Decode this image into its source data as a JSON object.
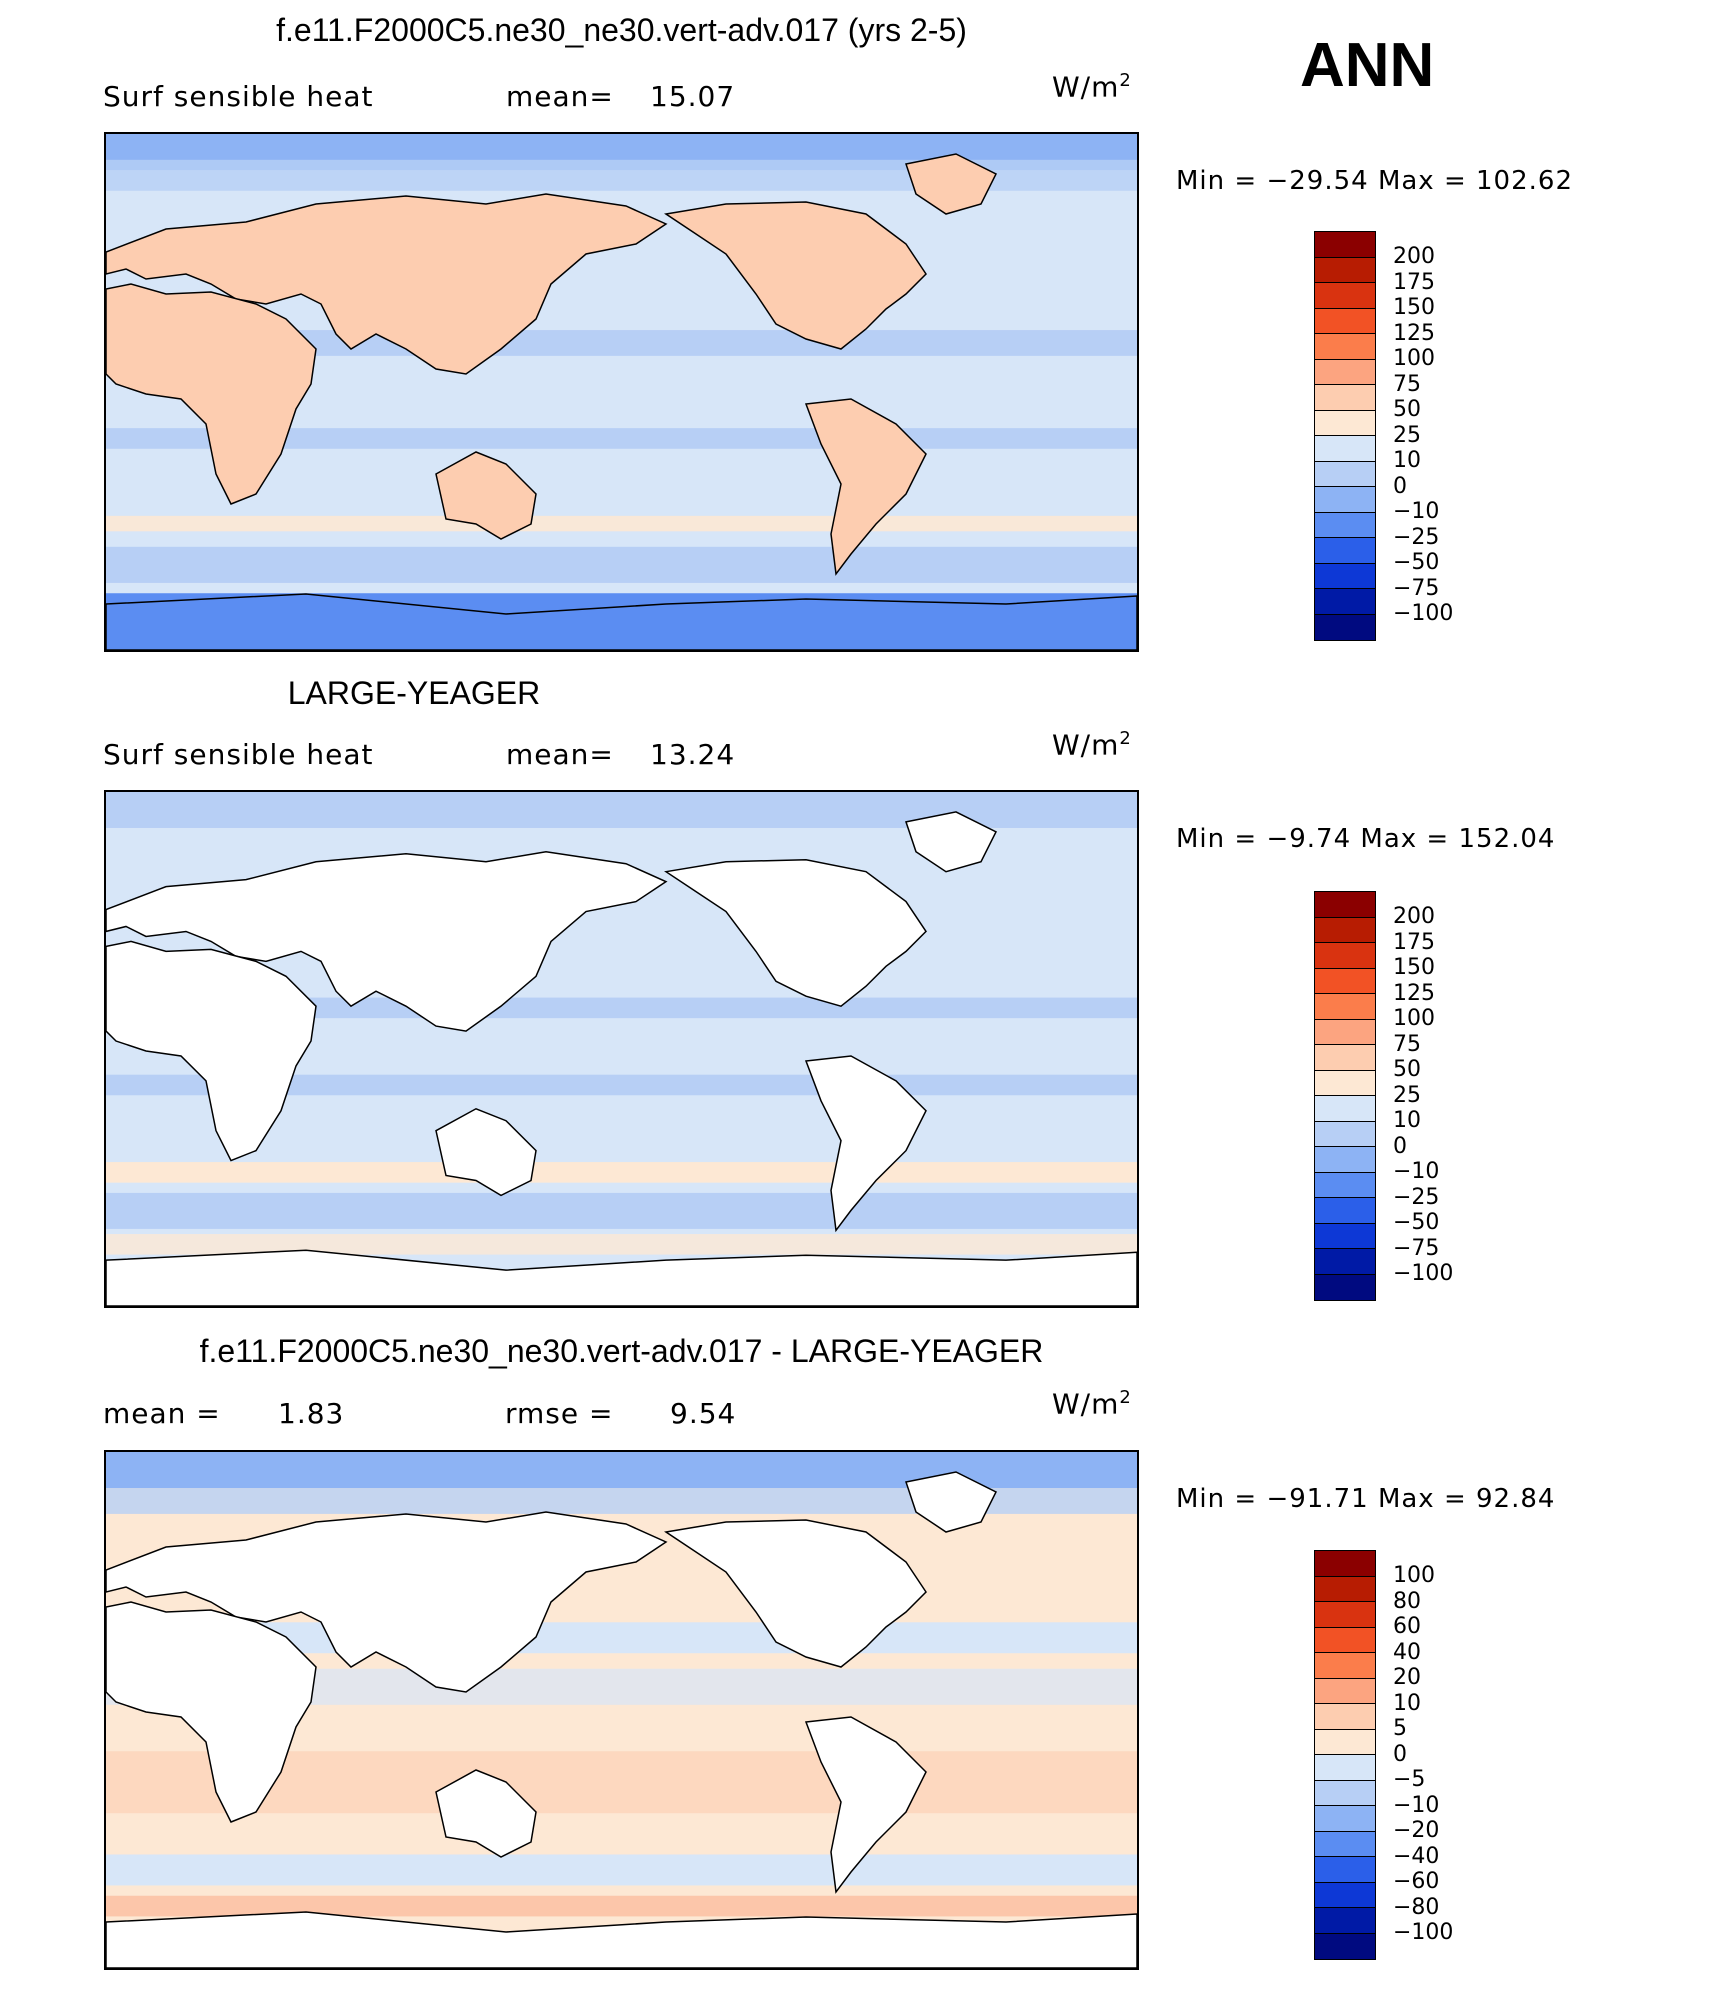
{
  "season": "ANN",
  "panels": [
    {
      "title": "f.e11.F2000C5.ne30_ne30.vert-adv.017 (yrs 2-5)",
      "left_label": "Surf  sensible  heat",
      "stat_label": "mean=",
      "stat_value": "15.07",
      "units": "W/m",
      "units_sup": "2",
      "min_label": "Min  =  ",
      "min_value": "−29.54",
      "max_label": "Max  =",
      "max_value": "102.62",
      "colorbar_levels": [
        "200",
        "175",
        "150",
        "125",
        "100",
        "75",
        "50",
        "25",
        "10",
        "0",
        "−10",
        "−25",
        "−50",
        "−75",
        "−100"
      ],
      "colorbar_colors": [
        "#8b0000",
        "#b71c02",
        "#d93310",
        "#f25225",
        "#fb7d4b",
        "#fca480",
        "#fdcdb0",
        "#fde8d4",
        "#d7e6f8",
        "#b7cff5",
        "#8db3f4",
        "#5b8df2",
        "#2b5fe9",
        "#0d38d6",
        "#001aa6",
        "#000a80"
      ],
      "land_filled": true
    },
    {
      "title": "LARGE-YEAGER",
      "left_label": "Surf  sensible  heat",
      "stat_label": "mean=",
      "stat_value": "13.24",
      "units": "W/m",
      "units_sup": "2",
      "min_label": "Min  =   ",
      "min_value": "−9.74",
      "max_label": "Max  =",
      "max_value": "152.04",
      "colorbar_levels": [
        "200",
        "175",
        "150",
        "125",
        "100",
        "75",
        "50",
        "25",
        "10",
        "0",
        "−10",
        "−25",
        "−50",
        "−75",
        "−100"
      ],
      "colorbar_colors": [
        "#8b0000",
        "#b71c02",
        "#d93310",
        "#f25225",
        "#fb7d4b",
        "#fca480",
        "#fdcdb0",
        "#fde8d4",
        "#d7e6f8",
        "#b7cff5",
        "#8db3f4",
        "#5b8df2",
        "#2b5fe9",
        "#0d38d6",
        "#001aa6",
        "#000a80"
      ],
      "land_filled": false
    },
    {
      "title": "f.e11.F2000C5.ne30_ne30.vert-adv.017 - LARGE-YEAGER",
      "left_label": "mean  =",
      "left_value": "1.83",
      "stat_label": "rmse  =",
      "stat_value": "9.54",
      "units": "W/m",
      "units_sup": "2",
      "min_label": "Min  =  ",
      "min_value": "−91.71",
      "max_label": "Max  =",
      "max_value": "92.84",
      "colorbar_levels": [
        "100",
        "80",
        "60",
        "40",
        "20",
        "10",
        "5",
        "0",
        "−5",
        "−10",
        "−20",
        "−40",
        "−60",
        "−80",
        "−100"
      ],
      "colorbar_colors": [
        "#8b0000",
        "#b71c02",
        "#d93310",
        "#f25225",
        "#fb7d4b",
        "#fca480",
        "#fdcdb0",
        "#fde8d4",
        "#d7e6f8",
        "#b7cff5",
        "#8db3f4",
        "#5b8df2",
        "#2b5fe9",
        "#0d38d6",
        "#001aa6",
        "#000a80"
      ],
      "land_filled": false
    }
  ]
}
